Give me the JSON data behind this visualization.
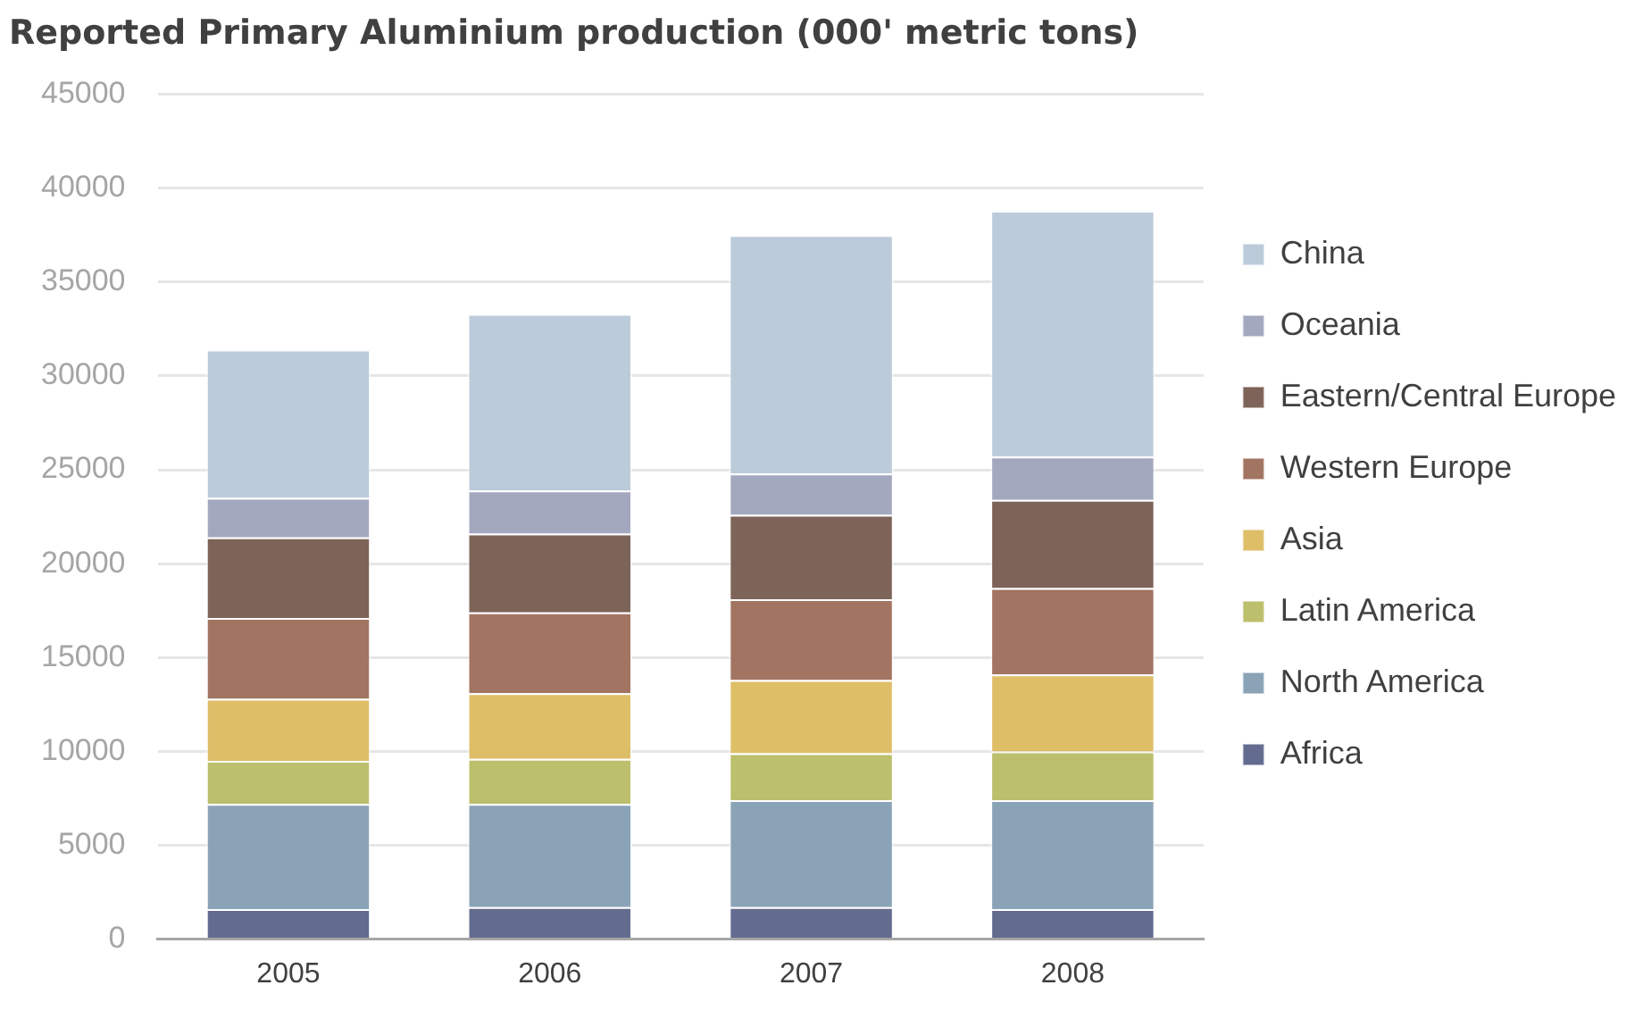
{
  "chart_data": {
    "type": "bar",
    "title": "Reported Primary Aluminium production (000' metric tons)",
    "stacked": true,
    "categories": [
      "2005",
      "2006",
      "2007",
      "2008"
    ],
    "series": [
      {
        "name": "Africa",
        "color": "#636b8f",
        "values": [
          1600,
          1700,
          1700,
          1600
        ]
      },
      {
        "name": "North America",
        "color": "#8ba3b7",
        "values": [
          5600,
          5500,
          5700,
          5800
        ]
      },
      {
        "name": "Latin America",
        "color": "#bcbf6b",
        "values": [
          2300,
          2400,
          2500,
          2600
        ]
      },
      {
        "name": "Asia",
        "color": "#dfbe68",
        "values": [
          3300,
          3500,
          3900,
          4100
        ]
      },
      {
        "name": "Western Europe",
        "color": "#a27462",
        "values": [
          4300,
          4300,
          4300,
          4600
        ]
      },
      {
        "name": "Eastern/Central Europe",
        "color": "#7d6358",
        "values": [
          4300,
          4200,
          4500,
          4700
        ]
      },
      {
        "name": "Oceania",
        "color": "#a3a8bf",
        "values": [
          2100,
          2300,
          2200,
          2300
        ]
      },
      {
        "name": "China",
        "color": "#bccbda",
        "values": [
          7900,
          9400,
          12700,
          13100
        ]
      }
    ],
    "ylim": [
      0,
      45000
    ],
    "yticks": [
      0,
      5000,
      10000,
      15000,
      20000,
      25000,
      30000,
      35000,
      40000,
      45000
    ],
    "grid": "y",
    "legend": "right"
  }
}
